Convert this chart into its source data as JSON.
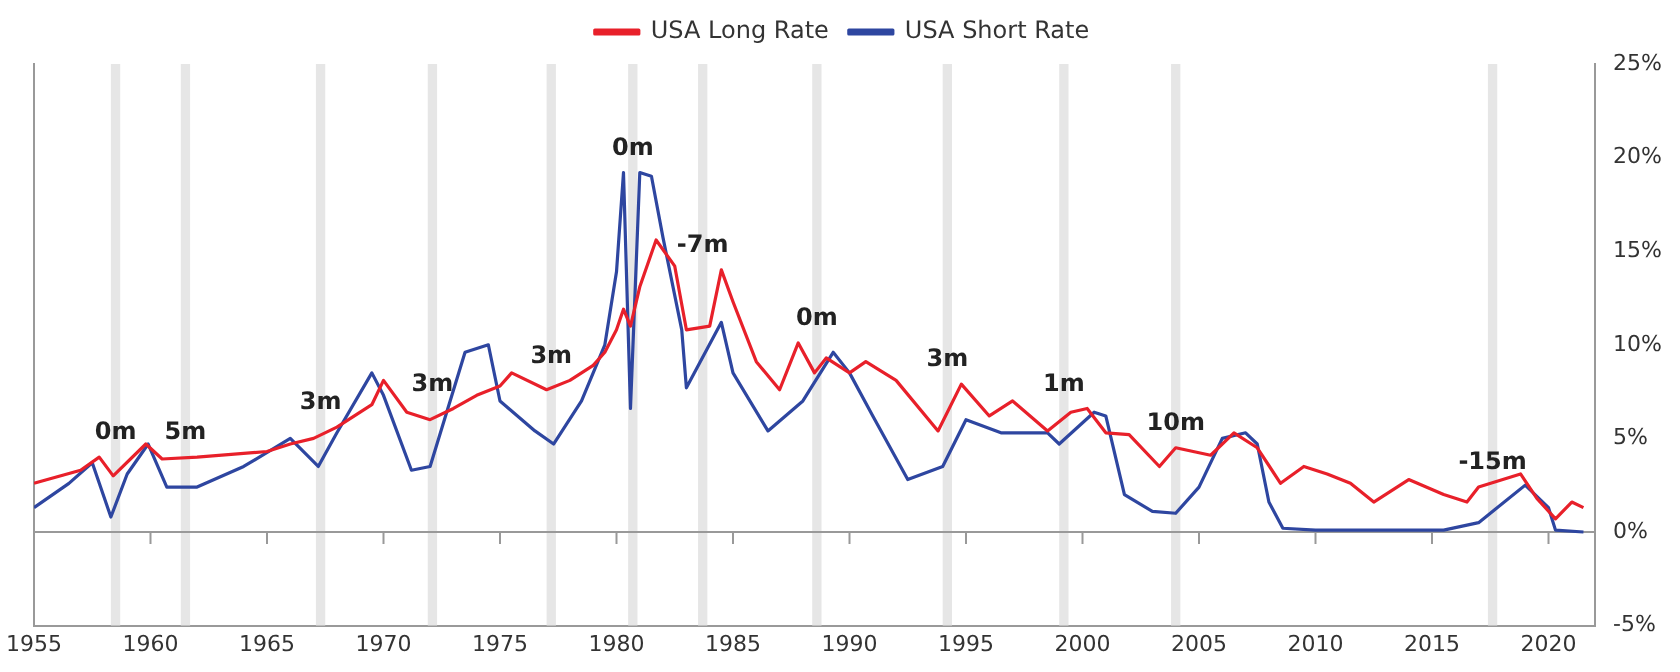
{
  "chart_data": {
    "type": "line",
    "legend": "top",
    "grid": false,
    "marker": "none",
    "line_style": "solid",
    "xlim": [
      1955,
      2022
    ],
    "xticks": [
      1955,
      1960,
      1965,
      1970,
      1975,
      1980,
      1985,
      1990,
      1995,
      2000,
      2005,
      2010,
      2015,
      2020
    ],
    "ylim": [
      -5,
      25
    ],
    "yticks": [
      {
        "value": -5,
        "label": "-5%"
      },
      {
        "value": 0,
        "label": "0%"
      },
      {
        "value": 5,
        "label": "5%"
      },
      {
        "value": 10,
        "label": "10%"
      },
      {
        "value": 15,
        "label": "15%"
      },
      {
        "value": 20,
        "label": "20%"
      },
      {
        "value": 25,
        "label": "25%"
      }
    ],
    "ref_lines": [
      {
        "axis": "y",
        "value": 0,
        "color": "#999999"
      }
    ],
    "bands": [
      {
        "axis": "x",
        "from": 1958.3,
        "to": 1958.7,
        "label": "0m",
        "color": "#e6e6e6"
      },
      {
        "axis": "x",
        "from": 1961.3,
        "to": 1961.7,
        "label": "5m",
        "color": "#e6e6e6"
      },
      {
        "axis": "x",
        "from": 1967.1,
        "to": 1967.5,
        "label": "3m",
        "color": "#e6e6e6"
      },
      {
        "axis": "x",
        "from": 1971.9,
        "to": 1972.3,
        "label": "3m",
        "color": "#e6e6e6"
      },
      {
        "axis": "x",
        "from": 1977,
        "to": 1977.4,
        "label": "3m",
        "color": "#e6e6e6"
      },
      {
        "axis": "x",
        "from": 1980.5,
        "to": 1980.9,
        "label": "0m",
        "color": "#e6e6e6"
      },
      {
        "axis": "x",
        "from": 1983.5,
        "to": 1983.9,
        "label": "-7m",
        "color": "#e6e6e6"
      },
      {
        "axis": "x",
        "from": 1988.4,
        "to": 1988.8,
        "label": "0m",
        "color": "#e6e6e6"
      },
      {
        "axis": "x",
        "from": 1994,
        "to": 1994.4,
        "label": "3m",
        "color": "#e6e6e6"
      },
      {
        "axis": "x",
        "from": 1999,
        "to": 1999.4,
        "label": "1m",
        "color": "#e6e6e6"
      },
      {
        "axis": "x",
        "from": 2003.8,
        "to": 2004.2,
        "label": "10m",
        "color": "#e6e6e6"
      },
      {
        "axis": "x",
        "from": 2017.4,
        "to": 2017.8,
        "label": "-15m",
        "color": "#e6e6e6"
      }
    ],
    "series": [
      {
        "name": "USA Long Rate",
        "color": "#e8202a",
        "x": [
          1955,
          1957,
          1957.8,
          1958.4,
          1959.8,
          1960.5,
          1962,
          1965,
          1966,
          1967,
          1968,
          1969.5,
          1970,
          1971,
          1972,
          1973,
          1974,
          1975,
          1975.5,
          1977,
          1978,
          1979,
          1979.5,
          1980,
          1980.3,
          1980.6,
          1981,
          1981.7,
          1982.5,
          1983,
          1984,
          1984.5,
          1985,
          1986,
          1987,
          1987.8,
          1988.5,
          1989,
          1990,
          1990.7,
          1992,
          1993.8,
          1994.8,
          1996,
          1997,
          1998.5,
          1999.5,
          2000.2,
          2001,
          2002,
          2003.3,
          2004,
          2005.5,
          2006.5,
          2007.5,
          2008.5,
          2009.5,
          2010.5,
          2011.5,
          2012.5,
          2014,
          2015.5,
          2016.5,
          2017,
          2018.8,
          2019.5,
          2020.3,
          2021,
          2021.5
        ],
        "values": [
          2.6,
          3.3,
          4.0,
          3.0,
          4.7,
          3.9,
          4.0,
          4.3,
          4.7,
          5.0,
          5.6,
          6.8,
          8.1,
          6.4,
          6.0,
          6.6,
          7.3,
          7.8,
          8.5,
          7.6,
          8.1,
          8.9,
          9.6,
          10.8,
          11.9,
          11.0,
          13.1,
          15.6,
          14.2,
          10.8,
          11.0,
          14.0,
          12.3,
          9.1,
          7.6,
          10.1,
          8.5,
          9.3,
          8.5,
          9.1,
          8.1,
          5.4,
          7.9,
          6.2,
          7.0,
          5.4,
          6.4,
          6.6,
          5.3,
          5.2,
          3.5,
          4.5,
          4.1,
          5.3,
          4.5,
          2.6,
          3.5,
          3.1,
          2.6,
          1.6,
          2.8,
          2.0,
          1.6,
          2.4,
          3.1,
          1.8,
          0.7,
          1.6,
          1.3
        ]
      },
      {
        "name": "USA Short Rate",
        "color": "#2e46a0",
        "x": [
          1955,
          1956.5,
          1957.5,
          1958.3,
          1959,
          1959.9,
          1960.7,
          1962,
          1964,
          1966,
          1967.2,
          1968,
          1969.5,
          1970,
          1971.2,
          1972,
          1973.5,
          1974.5,
          1975,
          1976.5,
          1977.3,
          1978.5,
          1979.5,
          1980,
          1980.3,
          1980.6,
          1981,
          1981.5,
          1982,
          1982.8,
          1983,
          1984.5,
          1985,
          1986.5,
          1988,
          1989.3,
          1990,
          1991,
          1992.5,
          1994,
          1995,
          1996.5,
          1998.5,
          1999,
          2000.5,
          2001,
          2001.8,
          2003,
          2004,
          2005,
          2006,
          2007,
          2007.5,
          2008,
          2008.6,
          2010,
          2015.5,
          2017,
          2019,
          2020,
          2020.3,
          2021.5
        ],
        "values": [
          1.3,
          2.6,
          3.7,
          0.8,
          3.1,
          4.7,
          2.4,
          2.4,
          3.5,
          5.0,
          3.5,
          5.3,
          8.5,
          7.3,
          3.3,
          3.5,
          9.6,
          10.0,
          7.0,
          5.4,
          4.7,
          7.0,
          10.0,
          13.9,
          19.2,
          6.6,
          19.2,
          19.0,
          15.7,
          10.8,
          7.7,
          11.2,
          8.5,
          5.4,
          7.0,
          9.6,
          8.5,
          6.2,
          2.8,
          3.5,
          6.0,
          5.3,
          5.3,
          4.7,
          6.4,
          6.2,
          2.0,
          1.1,
          1.0,
          2.4,
          5.0,
          5.3,
          4.7,
          1.6,
          0.2,
          0.1,
          0.1,
          0.5,
          2.5,
          1.3,
          0.1,
          0.0
        ]
      }
    ]
  }
}
